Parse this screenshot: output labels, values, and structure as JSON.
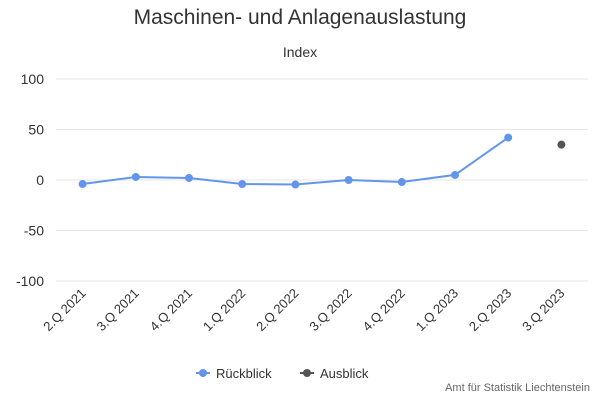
{
  "chart_data": {
    "type": "line",
    "title": "Maschinen- und Anlagenauslastung",
    "subtitle": "Index",
    "categories": [
      "2.Q 2021",
      "3.Q 2021",
      "4.Q 2021",
      "1.Q 2022",
      "2.Q 2022",
      "3.Q 2022",
      "4.Q 2022",
      "1.Q 2023",
      "2.Q 2023",
      "3.Q 2023"
    ],
    "ylim": [
      -100,
      100
    ],
    "yticks": [
      100,
      50,
      0,
      -50,
      -100
    ],
    "grid": true,
    "legend_placement": "bottom-center",
    "series": [
      {
        "name": "Rückblick",
        "color": "#6495ED",
        "values": [
          -4,
          3,
          2,
          -4,
          -4.5,
          0,
          -2,
          5,
          42,
          null
        ]
      },
      {
        "name": "Ausblick",
        "color": "#555555",
        "values": [
          null,
          null,
          null,
          null,
          null,
          null,
          null,
          null,
          null,
          35
        ]
      }
    ]
  },
  "credits": "Amt für Statistik Liechtenstein"
}
